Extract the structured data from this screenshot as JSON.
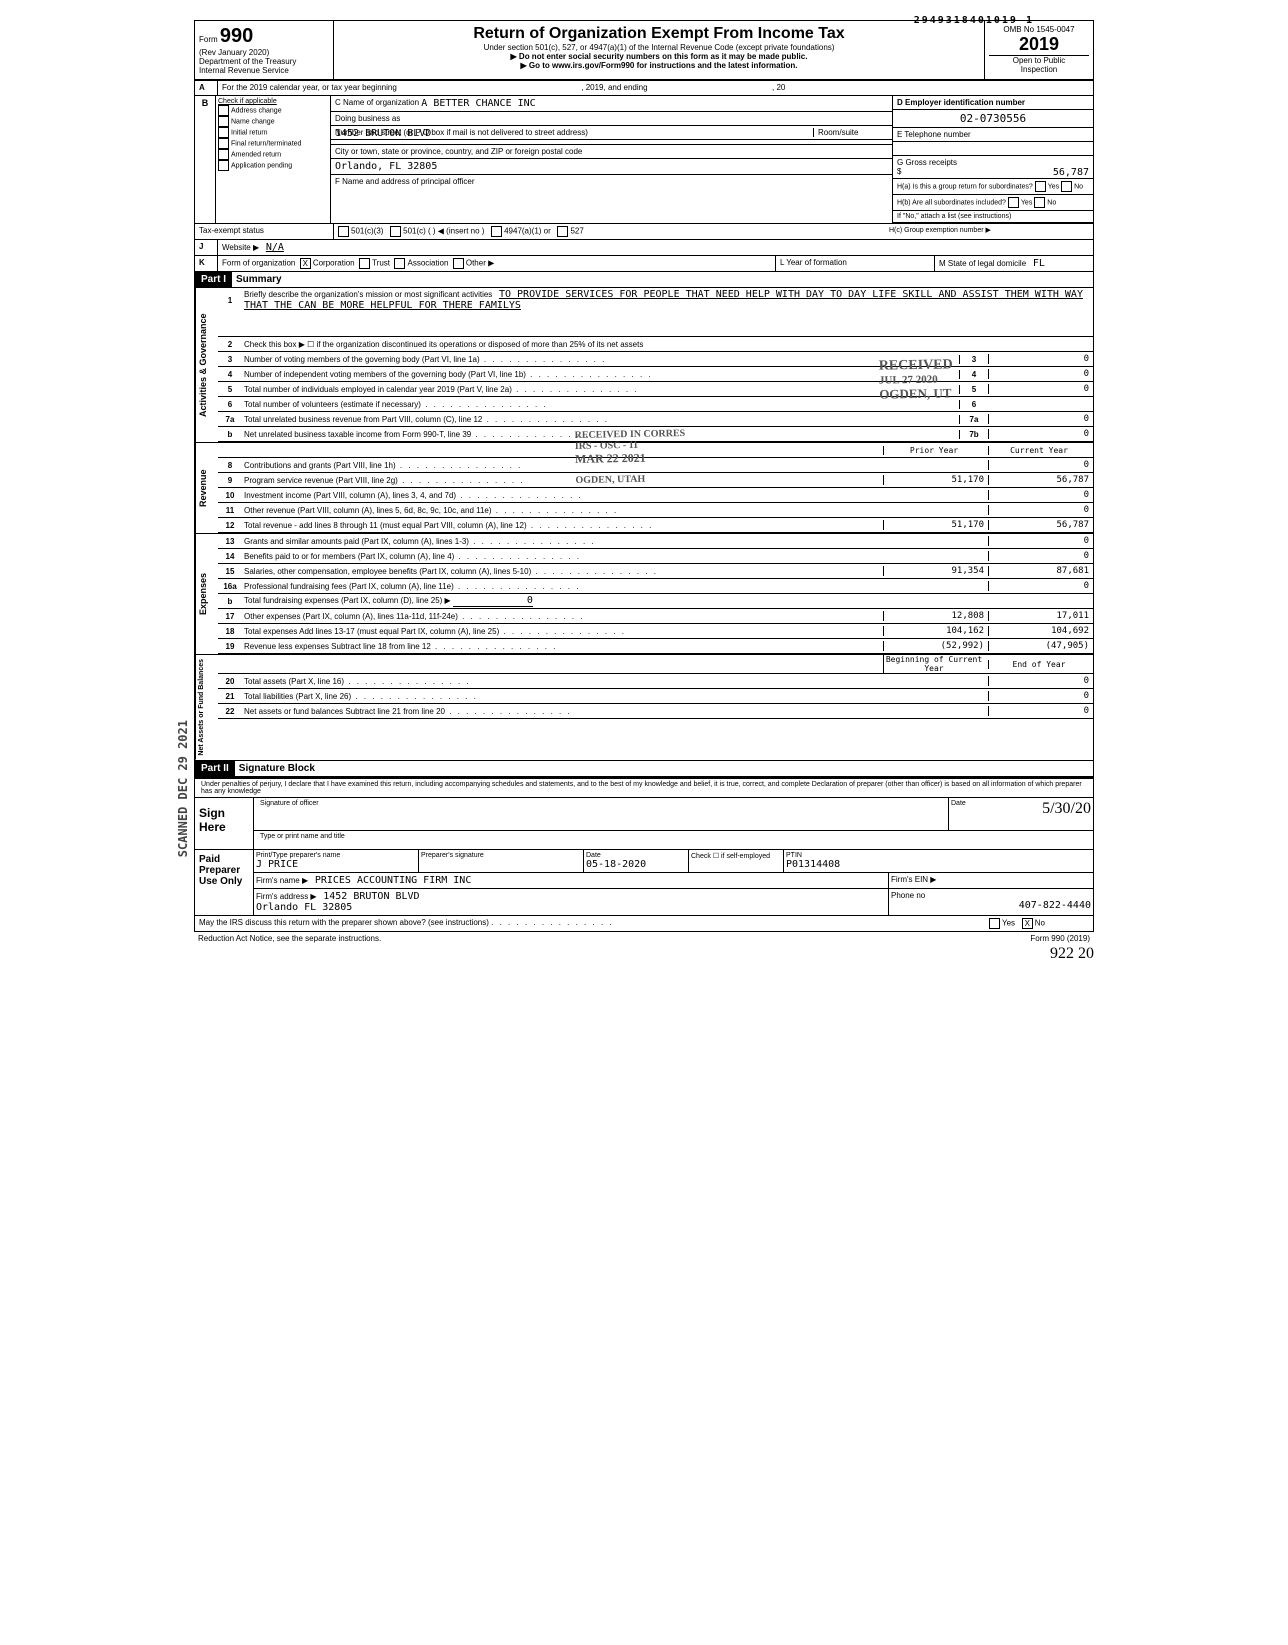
{
  "top_number": "2949318401019 1",
  "omb": "OMB No 1545-0047",
  "form": {
    "number": "990",
    "rev": "(Rev January 2020)",
    "dept": "Department of the Treasury\nInternal Revenue Service",
    "title": "Return of Organization Exempt From Income Tax",
    "subtitle": "Under section 501(c), 527, or 4947(a)(1) of the Internal Revenue Code (except private foundations)",
    "warn1": "▶ Do not enter social security numbers on this form as it may be made public.",
    "warn2": "▶ Go to www.irs.gov/Form990 for instructions and the latest information.",
    "year": "2019",
    "open": "Open to Public",
    "inspection": "Inspection"
  },
  "lineA": {
    "prefix": "A",
    "text": "For the 2019 calendar year, or tax year beginning",
    "mid": ", 2019, and ending",
    "end": ", 20"
  },
  "sectionB": {
    "checks": [
      "Check if applicable",
      "Address change",
      "Name change",
      "Initial return",
      "Final return/terminated",
      "Amended return",
      "Application pending"
    ],
    "c_label": "C Name of organization",
    "c_name": "A BETTER CHANCE INC",
    "dba": "Doing business as",
    "street_label": "Number and street (or P O box if mail is not delivered to street address)",
    "street": "1452 BRUTON BLVD",
    "room_label": "Room/suite",
    "city_label": "City or town, state or province, country, and ZIP or foreign postal code",
    "city": "Orlando, FL 32805",
    "f_label": "F Name and address of principal officer",
    "d_label": "D   Employer identification number",
    "ein": "02-0730556",
    "e_label": "E   Telephone number",
    "g_label": "G   Gross receipts",
    "g_val": "56,787",
    "ha": "H(a) Is this a group return for subordinates?",
    "hb": "H(b) Are all subordinates included?",
    "hnote": "If \"No,\" attach a list (see instructions)",
    "hc": "H(c)    Group exemption number  ▶",
    "yes": "Yes",
    "no": "No"
  },
  "lineI": {
    "label": "Tax-exempt status",
    "opts": [
      "501(c)(3)",
      "501(c) (",
      ")  ◀  (insert no )",
      "4947(a)(1) or",
      "527"
    ]
  },
  "lineJ": {
    "label": "J",
    "text": "Website  ▶",
    "val": "N/A"
  },
  "lineK": {
    "label": "K",
    "text": "Form of organization",
    "opts": [
      "Corporation",
      "Trust",
      "Association",
      "Other ▶"
    ],
    "checked": "X",
    "l": "L  Year of formation",
    "m": "M   State of legal domicile",
    "m_val": "FL"
  },
  "part1": {
    "header": "Part I",
    "title": "Summary",
    "vert_gov": "Activities & Governance",
    "vert_rev": "Revenue",
    "vert_exp": "Expenses",
    "vert_net": "Net Assets or Fund Balances",
    "line1_label": "1",
    "line1_text": "Briefly describe the organization's mission or most significant activities",
    "mission": "TO PROVIDE SERVICES FOR PEOPLE THAT NEED HELP WITH DAY TO DAY LIFE SKILL   AND ASSIST THEM WITH WAY THAT THE CAN BE MORE HELPFUL FOR THERE FAMILYS",
    "line2": "Check this box ▶ ☐ if the organization discontinued its operations or disposed of more than 25% of its net assets",
    "lines": [
      {
        "n": "3",
        "t": "Number of voting members of the governing body (Part VI, line 1a)",
        "box": "3",
        "v": "0"
      },
      {
        "n": "4",
        "t": "Number of independent voting members of the governing body (Part VI, line 1b)",
        "box": "4",
        "v": "0"
      },
      {
        "n": "5",
        "t": "Total number of individuals employed in calendar year 2019 (Part V, line 2a)",
        "box": "5",
        "v": "0"
      },
      {
        "n": "6",
        "t": "Total number of volunteers (estimate if necessary)",
        "box": "6",
        "v": ""
      },
      {
        "n": "7a",
        "t": "Total unrelated business revenue from Part VIII, column (C), line 12",
        "box": "7a",
        "v": "0"
      },
      {
        "n": "b",
        "t": "Net unrelated business taxable income from Form 990-T, line 39",
        "box": "7b",
        "v": "0"
      }
    ],
    "prior": "Prior Year",
    "current": "Current Year",
    "rev_lines": [
      {
        "n": "8",
        "t": "Contributions and grants (Part VIII, line 1h)",
        "p": "",
        "c": "0"
      },
      {
        "n": "9",
        "t": "Program service revenue (Part VIII, line 2g)",
        "p": "51,170",
        "c": "56,787"
      },
      {
        "n": "10",
        "t": "Investment income (Part VIII, column (A), lines 3, 4, and 7d)",
        "p": "",
        "c": "0"
      },
      {
        "n": "11",
        "t": "Other revenue (Part VIII, column (A), lines 5, 6d, 8c, 9c, 10c, and 11e)",
        "p": "",
        "c": "0"
      },
      {
        "n": "12",
        "t": "Total revenue - add lines 8 through 11 (must equal Part VIII, column (A), line 12)",
        "p": "51,170",
        "c": "56,787"
      }
    ],
    "exp_lines": [
      {
        "n": "13",
        "t": "Grants and similar amounts paid (Part IX, column (A), lines 1-3)",
        "p": "",
        "c": "0"
      },
      {
        "n": "14",
        "t": "Benefits paid to or for members (Part IX, column (A), line 4)",
        "p": "",
        "c": "0"
      },
      {
        "n": "15",
        "t": "Salaries, other compensation, employee benefits (Part IX, column (A), lines 5-10)",
        "p": "91,354",
        "c": "87,681"
      },
      {
        "n": "16a",
        "t": "Professional fundraising fees (Part IX, column (A), line 11e)",
        "p": "",
        "c": "0"
      },
      {
        "n": "b",
        "t": "Total fundraising expenses (Part IX, column (D), line 25)    ▶",
        "p": "",
        "c": "",
        "inline": "0"
      },
      {
        "n": "17",
        "t": "Other expenses (Part IX, column (A), lines 11a-11d, 11f-24e)",
        "p": "12,808",
        "c": "17,011"
      },
      {
        "n": "18",
        "t": "Total expenses  Add lines 13-17 (must equal Part IX, column (A), line 25)",
        "p": "104,162",
        "c": "104,692"
      },
      {
        "n": "19",
        "t": "Revenue less expenses  Subtract line 18 from line 12",
        "p": "(52,992)",
        "c": "(47,905)"
      }
    ],
    "begin": "Beginning of Current Year",
    "end": "End of Year",
    "net_lines": [
      {
        "n": "20",
        "t": "Total assets (Part X, line 16)",
        "p": "",
        "c": "0"
      },
      {
        "n": "21",
        "t": "Total liabilities (Part X, line 26)",
        "p": "",
        "c": "0"
      },
      {
        "n": "22",
        "t": "Net assets or fund balances  Subtract line 21 from line 20",
        "p": "",
        "c": "0"
      }
    ]
  },
  "part2": {
    "header": "Part II",
    "title": "Signature Block",
    "perjury": "Under penalties of perjury, I declare that I have examined this return, including accompanying schedules and statements, and to the best of my knowledge and belief, it is true, correct, and complete  Declaration of preparer (other than officer) is based on all information of which preparer has any knowledge",
    "sign": "Sign Here",
    "sig_officer": "Signature of officer",
    "date": "Date",
    "date_val": "5/30/20",
    "type_name": "Type or print name and title",
    "paid": "Paid Preparer Use Only",
    "prep_name_label": "Print/Type preparer's name",
    "prep_name": "J PRICE",
    "prep_sig": "Preparer's signature",
    "prep_date": "05-18-2020",
    "check": "Check ☐ if self-employed",
    "ptin_label": "PTIN",
    "ptin": "P01314408",
    "firm_name_label": "Firm's name  ▶",
    "firm_name": "PRICES ACCOUNTING FIRM INC",
    "firm_ein": "Firm's EIN  ▶",
    "firm_addr_label": "Firm's address ▶",
    "firm_addr": "1452 BRUTON BLVD\nOrlando FL 32805",
    "phone_label": "Phone no",
    "phone": "407-822-4440",
    "discuss": "May the IRS discuss this return with the preparer shown above? (see instructions)",
    "discuss_yes": "Yes",
    "discuss_no": "No",
    "discuss_checked": "X",
    "footer": "Reduction Act Notice, see the separate instructions.",
    "form_foot": "Form 990 (2019)",
    "hand_num": "922  20"
  },
  "stamps": {
    "received1": "RECEIVED",
    "date1": "JUL 27 2020",
    "ogden1": "OGDEN, UT",
    "received2": "RECEIVED IN CORRES",
    "irs_osc": "IRS - OSC - 11",
    "date2": "MAR 22 2021",
    "ogden2": "OGDEN, UTAH",
    "side_scanned": "SCANNED  DEC 29 2021",
    "side_date": "2021"
  }
}
